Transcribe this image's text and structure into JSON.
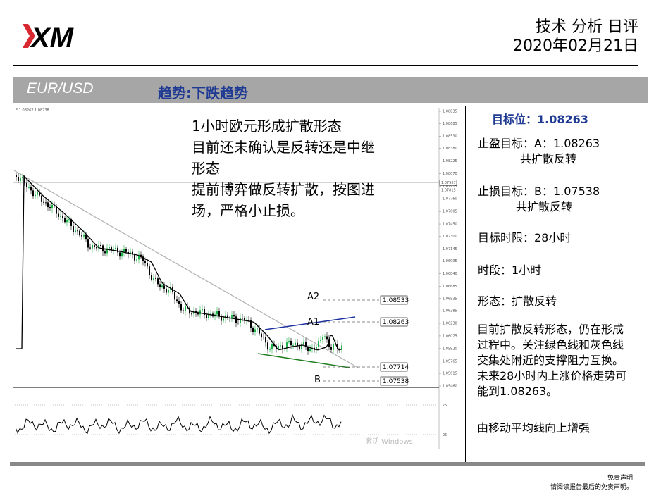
{
  "header": {
    "title": "技术 分析 日评",
    "date": "2020年02月21日"
  },
  "banner": {
    "pair": "EUR/USD",
    "trend": "趋势:下跌趋势"
  },
  "analysis": {
    "lines": [
      "1小时欧元形成扩散形态",
      "目前还未确认是反转还是中继",
      "形态",
      "提前博弈做反转扩散，按图进",
      "场，严格小止损。"
    ]
  },
  "chart_data": {
    "type": "line",
    "timeframe": "1小时",
    "header_text": "E 1.08262 1.08738",
    "price_ticks": [
      "1.08835",
      "1.08685",
      "1.08530",
      "1.08380",
      "1.08225",
      "1.08070",
      "1.07915",
      "1.07760",
      "1.07605",
      "1.07450",
      "1.07300",
      "1.07145",
      "1.06995",
      "1.06840",
      "1.06685",
      "1.06535",
      "1.06385",
      "1.06230",
      "1.06075",
      "1.05920",
      "1.05765",
      "1.05615",
      "1.05460"
    ],
    "current_price": "1.07957",
    "current_price_sub": "1.07815",
    "oscillator_ticks": [
      "75",
      "25"
    ],
    "levels": [
      {
        "label": "A2",
        "value": "1.08533"
      },
      {
        "label": "A1",
        "value": "1.08263"
      },
      {
        "label": "",
        "value": "1.07714"
      },
      {
        "label": "B",
        "value": "1.07538"
      }
    ],
    "watermark": "激活 Windows"
  },
  "info": {
    "target_label": "目标位：1.08263",
    "take_profit": "止盈目标：A：1.08263",
    "take_profit_sub": "共扩散反转",
    "stop_loss": "止损目标：B：1.07538",
    "stop_loss_sub": "共扩散反转",
    "time_limit": "目标时限：28小时",
    "period": "时段：1小时",
    "pattern": "形态：扩散反转",
    "summary_lines": [
      "目前扩散反转形态，仍在形成",
      "过程中。关注绿色线和灰色线",
      "交集处附近的支撑阻力互换。",
      "未来28小时内上涨价格走势可",
      "能到1.08263。"
    ],
    "note": "由移动平均线向上增强"
  },
  "disclaimer": {
    "title": "免责声明",
    "text": "请阅读报告最后的免责声明。"
  },
  "colors": {
    "brand_red": "#d7282f",
    "banner_gray": "#a6a6a6",
    "trend_blue": "#1f3a93",
    "bull_green": "#21b14b",
    "bear_black": "#000000",
    "upper_line_blue": "#1c2fa0",
    "lower_line_green": "#1e7d1e",
    "trend_line_gray": "#b0b0b0"
  }
}
